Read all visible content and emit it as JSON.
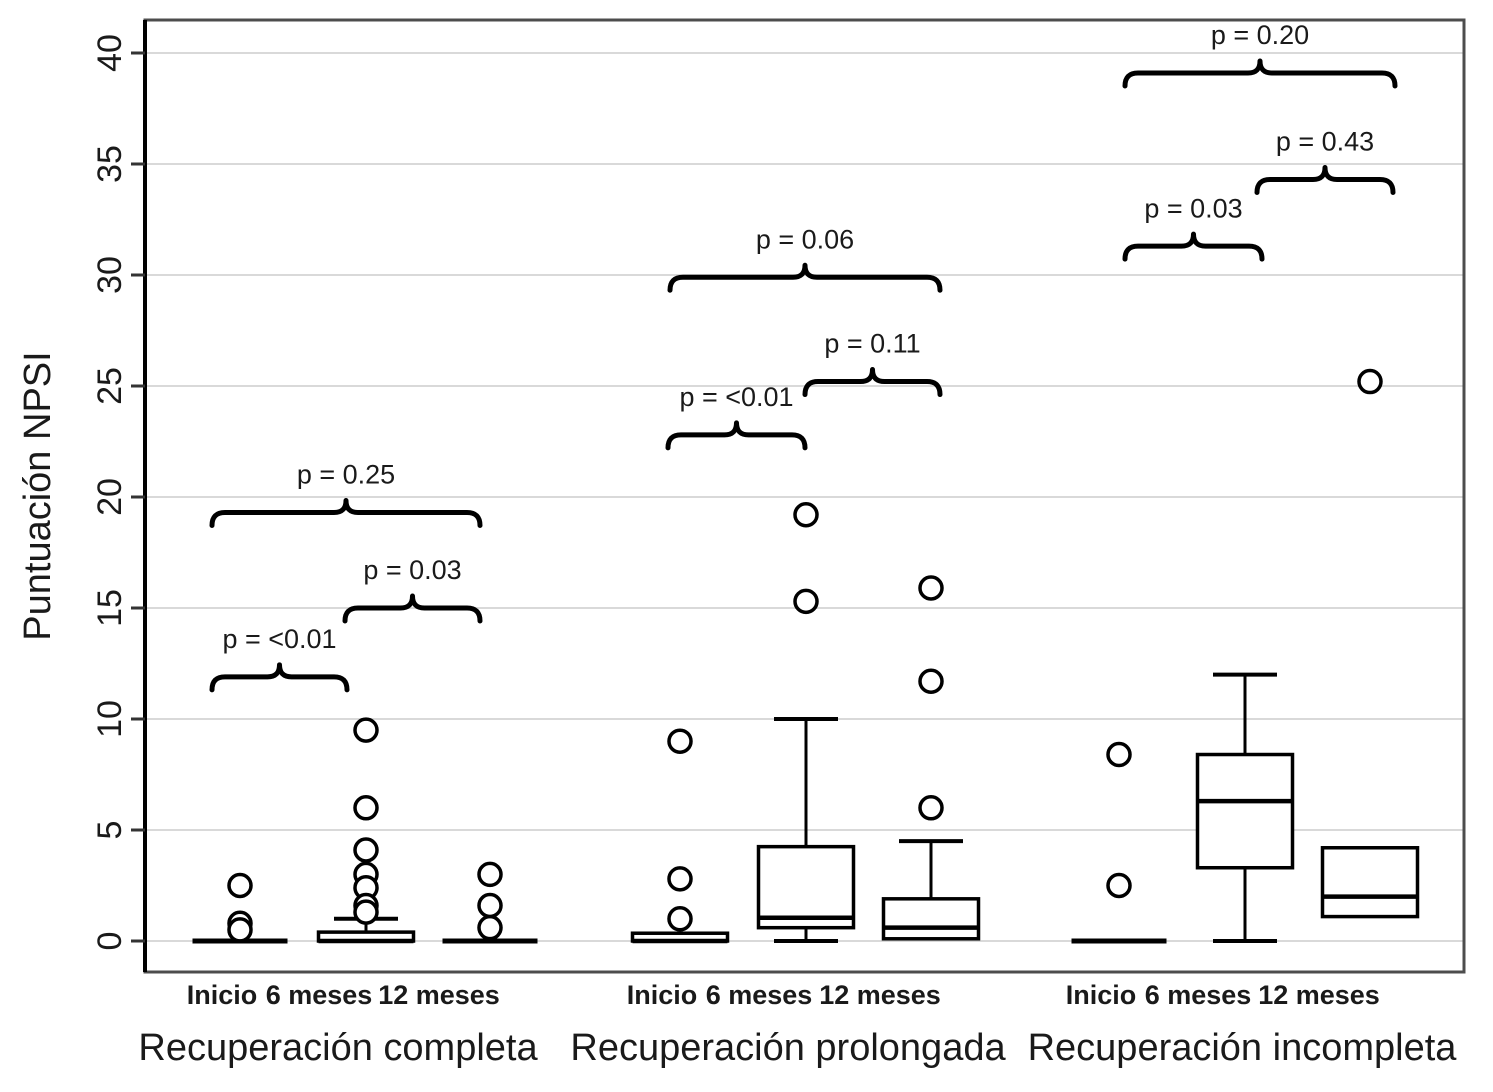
{
  "figure": {
    "ylabel": "Puntuación NPSI",
    "ink_color": "#000000",
    "grid_color": "#d9d9d9",
    "border_color": "#4d4d4d",
    "text_color": "#1a1a1a"
  },
  "chart_data": {
    "type": "box",
    "title": "",
    "ylabel": "Puntuación NPSI",
    "xlabel": "",
    "ylim": [
      0,
      40
    ],
    "y_ticks": [
      0,
      5,
      10,
      15,
      20,
      25,
      30,
      35,
      40
    ],
    "grid": true,
    "legend": "none",
    "groups": [
      {
        "label": "Recuperación completa",
        "boxes": [
          {
            "label": "Inicio",
            "min": 0,
            "q1": 0,
            "median": 0,
            "q3": 0,
            "max": 0,
            "outliers": [
              2.5,
              0.8,
              0.5
            ]
          },
          {
            "label": "6 meses",
            "min": 0,
            "q1": 0,
            "median": 0,
            "q3": 0.4,
            "max": 1.0,
            "outliers": [
              9.5,
              6.0,
              4.1,
              3.0,
              2.4,
              1.6,
              1.3
            ]
          },
          {
            "label": "12 meses",
            "min": 0,
            "q1": 0,
            "median": 0,
            "q3": 0,
            "max": 0,
            "outliers": [
              3.0,
              1.6,
              0.6
            ]
          }
        ],
        "comparisons": [
          {
            "between": [
              0,
              1
            ],
            "label": "p = <0.01",
            "height": 11.9
          },
          {
            "between": [
              1,
              2
            ],
            "label": "p = 0.03",
            "height": 15.0
          },
          {
            "between": [
              0,
              2
            ],
            "label": "p = 0.25",
            "height": 19.3
          }
        ]
      },
      {
        "label": "Recuperación prolongada",
        "boxes": [
          {
            "label": "Inicio",
            "min": 0,
            "q1": 0,
            "median": 0,
            "q3": 0.35,
            "max": 0.35,
            "outliers": [
              9.0,
              2.8,
              1.0
            ]
          },
          {
            "label": "6 meses",
            "min": 0,
            "q1": 0.6,
            "median": 1.05,
            "q3": 4.25,
            "max": 10.0,
            "outliers": [
              19.2,
              15.3
            ]
          },
          {
            "label": "12 meses",
            "min": 0.1,
            "q1": 0.1,
            "median": 0.6,
            "q3": 1.9,
            "max": 4.5,
            "outliers": [
              15.9,
              11.7,
              6.0
            ]
          }
        ],
        "comparisons": [
          {
            "between": [
              0,
              1
            ],
            "label": "p = <0.01",
            "height": 22.8
          },
          {
            "between": [
              1,
              2
            ],
            "label": "p = 0.11",
            "height": 25.2
          },
          {
            "between": [
              0,
              2
            ],
            "label": "p = 0.06",
            "height": 29.9
          }
        ]
      },
      {
        "label": "Recuperación incompleta",
        "boxes": [
          {
            "label": "Inicio",
            "min": 0,
            "q1": 0,
            "median": 0,
            "q3": 0,
            "max": 0,
            "outliers": [
              8.4,
              2.5
            ]
          },
          {
            "label": "6 meses",
            "min": 0,
            "q1": 3.3,
            "median": 6.3,
            "q3": 8.4,
            "max": 12.0,
            "outliers": []
          },
          {
            "label": "12 meses",
            "min": 1.1,
            "q1": 1.1,
            "median": 2.0,
            "q3": 4.2,
            "max": 4.2,
            "outliers": [
              25.2
            ]
          }
        ],
        "comparisons": [
          {
            "between": [
              0,
              1
            ],
            "label": "p = 0.03",
            "height": 31.3
          },
          {
            "between": [
              1,
              2
            ],
            "label": "p = 0.43",
            "height": 34.3
          },
          {
            "between": [
              0,
              2
            ],
            "label": "p = 0.20",
            "height": 39.1
          }
        ]
      }
    ]
  }
}
